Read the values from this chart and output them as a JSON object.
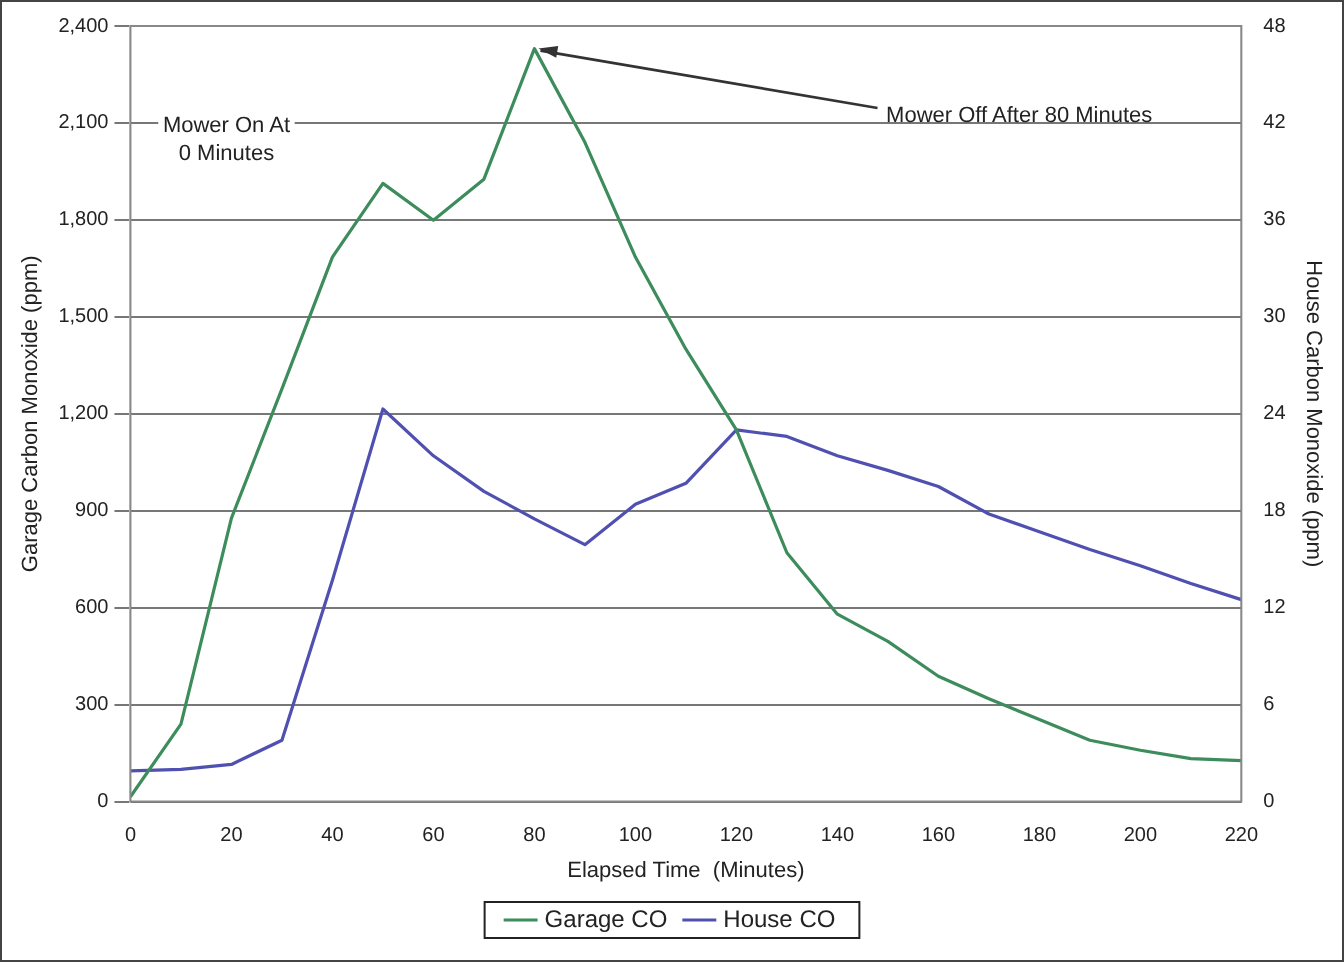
{
  "chart_data": {
    "type": "line",
    "xlabel": "Elapsed Time  (Minutes)",
    "ylabel": "Garage Carbon Monoxide (ppm)",
    "y2label": "House Carbon Monoxide (ppm)",
    "x": [
      0,
      10,
      20,
      30,
      40,
      50,
      60,
      70,
      80,
      90,
      100,
      110,
      120,
      130,
      140,
      150,
      160,
      170,
      180,
      190,
      200,
      210,
      220
    ],
    "series": [
      {
        "name": "Garage CO",
        "color": "#3d8c5c",
        "values": [
          15,
          240,
          877,
          1277,
          1685,
          1913,
          1799,
          1926,
          2330,
          2040,
          1685,
          1400,
          1150,
          770,
          580,
          496,
          388,
          318,
          254,
          190,
          159,
          133,
          127
        ]
      },
      {
        "name": "House CO",
        "color": "#5050b0",
        "axis": "y2",
        "values": [
          1.9,
          2.0,
          2.3,
          3.8,
          13.7,
          24.3,
          21.4,
          19.2,
          17.5,
          15.9,
          18.4,
          19.7,
          23,
          22.6,
          21.4,
          20.5,
          19.5,
          17.8,
          16.7,
          15.6,
          14.6,
          13.5,
          12.5
        ]
      }
    ],
    "xlim": [
      0,
      220
    ],
    "xticks": [
      0,
      20,
      40,
      60,
      80,
      100,
      120,
      140,
      160,
      180,
      200,
      220
    ],
    "ylim": [
      0,
      2400
    ],
    "yticks": [
      0,
      {
        "value": 300,
        "label": "300"
      },
      {
        "value": 600,
        "label": "600"
      },
      {
        "value": 900,
        "label": "900"
      },
      {
        "value": 1200,
        "label": "1,200"
      },
      {
        "value": 1500,
        "label": "1,500"
      },
      {
        "value": 1800,
        "label": "1,800"
      },
      {
        "value": 2100,
        "label": "2,100"
      },
      {
        "value": 2400,
        "label": "2,400"
      }
    ],
    "y2lim": [
      0,
      48
    ],
    "y2ticks": [
      0,
      6,
      12,
      18,
      24,
      30,
      36,
      42,
      48
    ],
    "grid": "y",
    "legend": "bottom",
    "marker": "none",
    "line_style": "solid",
    "annotations": [
      "Mower On At\n0 Minutes",
      {
        "text": "Mower Off After 80 Minutes",
        "x": 80,
        "y": 2330
      }
    ]
  }
}
